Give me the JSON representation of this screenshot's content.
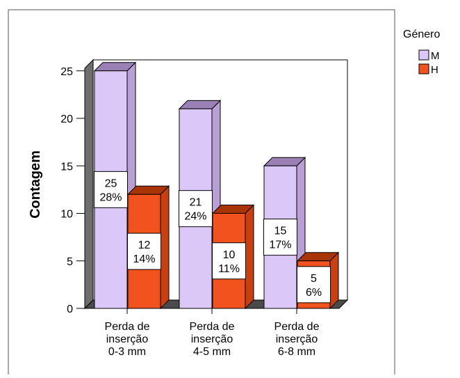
{
  "chart_data": {
    "type": "bar",
    "title": "",
    "xlabel": "",
    "ylabel": "Contagem",
    "ylim": [
      0,
      27
    ],
    "yticks": [
      0,
      5,
      10,
      15,
      20,
      25
    ],
    "grid": false,
    "legend_position": "top-right",
    "legend_title": "Género",
    "categories": [
      [
        "Perda de",
        "inserção",
        "0-3 mm"
      ],
      [
        "Perda de",
        "inserção",
        "4-5 mm"
      ],
      [
        "Perda de",
        "inserção",
        "6-8 mm"
      ]
    ],
    "series": [
      {
        "name": "M",
        "values": [
          25,
          21,
          15
        ],
        "labels": [
          [
            "25",
            "28%"
          ],
          [
            "21",
            "24%"
          ],
          [
            "15",
            "17%"
          ]
        ],
        "color": "#dcc8f8",
        "side_color": "#b8a0d4",
        "top_color": "#9a80b4"
      },
      {
        "name": "H",
        "values": [
          12,
          10,
          5
        ],
        "labels": [
          [
            "12",
            "14%"
          ],
          [
            "10",
            "11%"
          ],
          [
            "5",
            "6%"
          ]
        ],
        "color": "#f2531e",
        "side_color": "#c84010",
        "top_color": "#a83408"
      }
    ]
  }
}
